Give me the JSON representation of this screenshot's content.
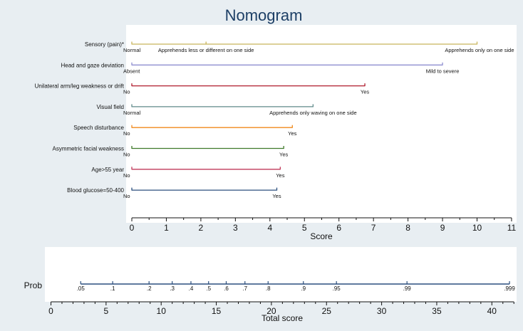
{
  "chart_data": [
    {
      "type": "nomogram",
      "title": "Nomogram",
      "xlabel": "Score",
      "xlim": [
        0,
        11
      ],
      "x_ticks": [
        0,
        1,
        2,
        3,
        4,
        5,
        6,
        7,
        8,
        9,
        10,
        11
      ],
      "variables": [
        {
          "name": "Sensory (pain)*",
          "color": "#c8b45a",
          "points": [
            {
              "score": 0,
              "label": "Normal"
            },
            {
              "score": 2.15,
              "label": "Apprehends less or different on one side"
            },
            {
              "score": 10,
              "label": "Apprehends only on one side"
            }
          ]
        },
        {
          "name": "Head and gaze deviation",
          "color": "#8f8fd0",
          "points": [
            {
              "score": 0,
              "label": "Absent"
            },
            {
              "score": 9,
              "label": "Mild to severe"
            }
          ]
        },
        {
          "name": "Unilateral arm/leg weakness or drift",
          "color": "#b01c2e",
          "points": [
            {
              "score": 0,
              "label": "No"
            },
            {
              "score": 6.75,
              "label": "Yes"
            }
          ]
        },
        {
          "name": "Visual field",
          "color": "#5f8a8a",
          "points": [
            {
              "score": 0,
              "label": "Normal"
            },
            {
              "score": 5.25,
              "label": "Apprehends only waving on one side"
            }
          ]
        },
        {
          "name": "Speech disturbance",
          "color": "#f08a1c",
          "points": [
            {
              "score": 0,
              "label": "No"
            },
            {
              "score": 4.65,
              "label": "Yes"
            }
          ]
        },
        {
          "name": "Asymmetric facial weakness",
          "color": "#3f7a2a",
          "points": [
            {
              "score": 0,
              "label": "No"
            },
            {
              "score": 4.4,
              "label": "Yes"
            }
          ]
        },
        {
          "name": "Age>55 year",
          "color": "#c0395a",
          "points": [
            {
              "score": 0,
              "label": "No"
            },
            {
              "score": 4.3,
              "label": "Yes"
            }
          ]
        },
        {
          "name": "Blood glucose=50-400",
          "color": "#2b4f7e",
          "points": [
            {
              "score": 0,
              "label": "No"
            },
            {
              "score": 4.2,
              "label": "Yes"
            }
          ]
        }
      ]
    },
    {
      "type": "nomogram-probability",
      "ylabel": "Prob",
      "xlabel": "Total score",
      "xlim": [
        -1,
        43
      ],
      "x_ticks": [
        0,
        5,
        10,
        15,
        20,
        25,
        30,
        35,
        40
      ],
      "line_color": "#2b4f7e",
      "line_range": [
        2.7,
        41.6
      ],
      "prob_ticks": [
        {
          "label": ".05",
          "total": 2.7
        },
        {
          "label": ".1",
          "total": 5.6
        },
        {
          "label": ".2",
          "total": 8.9
        },
        {
          "label": ".3",
          "total": 11
        },
        {
          "label": ".4",
          "total": 12.7
        },
        {
          "label": ".5",
          "total": 14.3
        },
        {
          "label": ".6",
          "total": 15.9
        },
        {
          "label": ".7",
          "total": 17.6
        },
        {
          "label": ".8",
          "total": 19.7
        },
        {
          "label": ".9",
          "total": 22.9
        },
        {
          "label": ".95",
          "total": 25.9
        },
        {
          "label": ".99",
          "total": 32.3
        },
        {
          "label": ".999",
          "total": 41.6
        }
      ]
    }
  ]
}
